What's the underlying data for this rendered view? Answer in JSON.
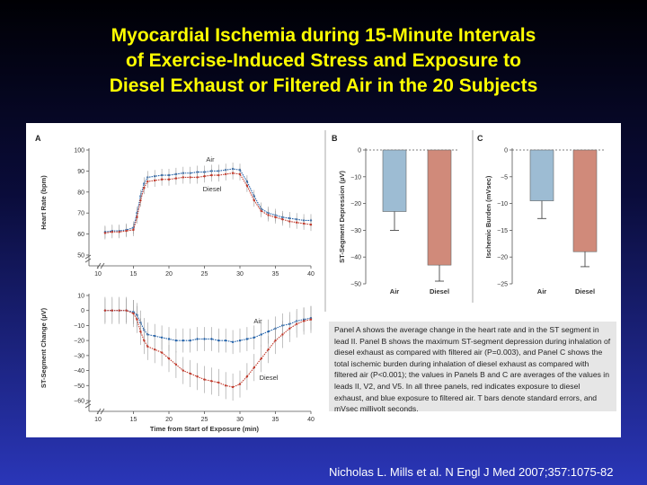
{
  "slide": {
    "title_lines": [
      "Myocardial Ischemia during 15-Minute Intervals",
      "of Exercise-Induced Stress and Exposure to",
      "Diesel Exhaust or Filtered Air in the 20 Subjects"
    ],
    "citation": "Nicholas L. Mills et al. N Engl J Med 2007;357:1075-82",
    "colors": {
      "title": "#ffff00",
      "air": "#1f5fa8",
      "diesel": "#c0392b",
      "air_bar": "#9dbcd3",
      "diesel_bar": "#d08a7a"
    }
  },
  "caption": "Panel A shows the average change in the heart rate and in the ST segment in lead II. Panel B shows the maximum ST-segment depression during inhalation of diesel exhaust as compared with filtered air (P=0.003), and Panel C shows the total ischemic burden during inhalation of diesel exhaust as compared with filtered air (P<0.001); the values in Panels B and C are averages of the values in leads II, V2, and V5. In all three panels, red indicates exposure to diesel exhaust, and blue exposure to filtered air. T bars denote standard errors, and mVsec millivolt seconds.",
  "chart_data": [
    {
      "panel": "A",
      "type": "line",
      "ylabel": "Heart Rate (bpm)",
      "ylim": [
        50,
        100
      ],
      "yticks": [
        50,
        60,
        70,
        80,
        90,
        100
      ],
      "xlim": [
        10,
        40
      ],
      "xticks": [
        10,
        15,
        20,
        25,
        30,
        35,
        40
      ],
      "x": [
        11,
        12,
        13,
        14,
        15,
        15.5,
        16,
        16.5,
        17,
        18,
        19,
        20,
        21,
        22,
        23,
        24,
        25,
        26,
        27,
        28,
        29,
        30,
        31,
        32,
        33,
        34,
        35,
        36,
        37,
        38,
        39,
        40
      ],
      "series": [
        {
          "name": "Air",
          "values": [
            61,
            61.5,
            61.5,
            62,
            63,
            70,
            78,
            84,
            87,
            87.5,
            88,
            88,
            88.5,
            89,
            89,
            89.5,
            89.5,
            90,
            90,
            90.5,
            91,
            90.5,
            85,
            78,
            72,
            70,
            69,
            68,
            67.5,
            67,
            66.5,
            66.5
          ],
          "se": 3
        },
        {
          "name": "Diesel",
          "values": [
            60.5,
            61,
            61,
            61.5,
            62,
            68,
            76,
            82,
            85,
            85.5,
            86,
            86,
            86.5,
            87,
            87,
            87,
            87.5,
            88,
            88,
            88.5,
            89,
            88.5,
            83,
            76,
            71,
            69,
            68,
            67,
            66,
            65.5,
            65,
            64.5
          ],
          "se": 3
        }
      ]
    },
    {
      "panel": "A",
      "type": "line",
      "ylabel": "ST-Segment Change (µV)",
      "xlabel": "Time from Start of Exposure (min)",
      "ylim": [
        -60,
        10
      ],
      "yticks": [
        10,
        0,
        -10,
        -20,
        -30,
        -40,
        -50,
        -60
      ],
      "xlim": [
        10,
        40
      ],
      "xticks": [
        10,
        15,
        20,
        25,
        30,
        35,
        40
      ],
      "x": [
        11,
        12,
        13,
        14,
        15,
        15.5,
        16,
        16.5,
        17,
        18,
        19,
        20,
        21,
        22,
        23,
        24,
        25,
        26,
        27,
        28,
        29,
        30,
        31,
        32,
        33,
        34,
        35,
        36,
        37,
        38,
        39,
        40
      ],
      "series": [
        {
          "name": "Air",
          "values": [
            0,
            0,
            0,
            0,
            -1,
            -3,
            -8,
            -13,
            -16,
            -17,
            -18,
            -19,
            -20,
            -20,
            -20,
            -19,
            -19,
            -19,
            -20,
            -20,
            -21,
            -20,
            -19,
            -18,
            -16,
            -14,
            -12,
            -10,
            -9,
            -7,
            -6,
            -5
          ],
          "se": 8
        },
        {
          "name": "Diesel",
          "values": [
            0,
            0,
            0,
            0,
            -2,
            -6,
            -14,
            -20,
            -24,
            -26,
            -28,
            -32,
            -36,
            -40,
            -42,
            -44,
            -46,
            -47,
            -48,
            -50,
            -51,
            -49,
            -44,
            -38,
            -32,
            -26,
            -20,
            -16,
            -12,
            -9,
            -7,
            -6
          ],
          "se": 9
        }
      ]
    },
    {
      "panel": "B",
      "type": "bar",
      "ylabel": "ST-Segment Depression (µV)",
      "ylim": [
        -50,
        0
      ],
      "yticks": [
        0,
        -10,
        -20,
        -30,
        -40,
        -50
      ],
      "categories": [
        "Air",
        "Diesel"
      ],
      "values": [
        -23,
        -43
      ],
      "errors": [
        7,
        6
      ]
    },
    {
      "panel": "C",
      "type": "bar",
      "ylabel": "Ischemic Burden (mVsec)",
      "ylim": [
        -25,
        0
      ],
      "yticks": [
        0,
        -5,
        -10,
        -15,
        -20,
        -25
      ],
      "categories": [
        "Air",
        "Diesel"
      ],
      "values": [
        -9.5,
        -19
      ],
      "errors": [
        3.3,
        2.8
      ]
    }
  ]
}
